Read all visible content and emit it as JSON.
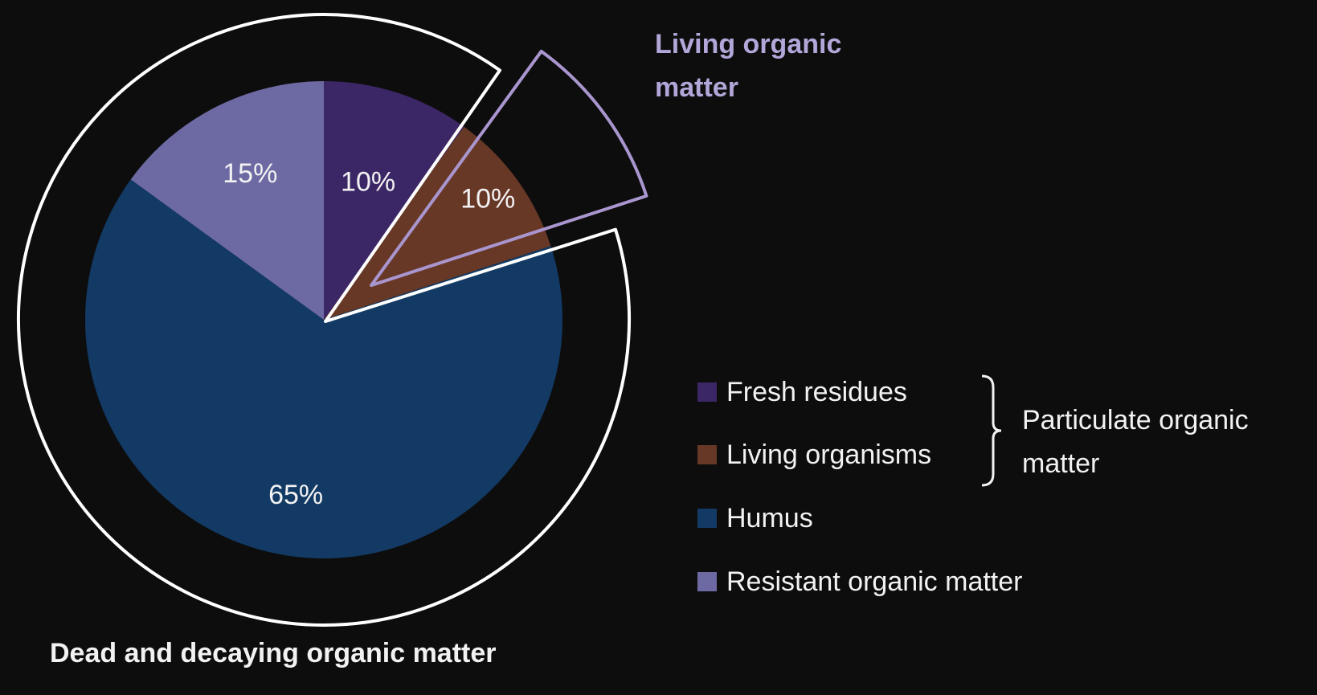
{
  "chart_data": {
    "type": "pie",
    "categories": [
      "Fresh residues",
      "Living organisms",
      "Humus",
      "Resistant organic matter"
    ],
    "values": [
      10,
      10,
      65,
      15
    ],
    "data_labels": [
      "10%",
      "10%",
      "65%",
      "15%"
    ],
    "colors": [
      "#3c2766",
      "#673826",
      "#123a64",
      "#6d6aa3"
    ],
    "start_angle_deg": 0,
    "direction": "clockwise",
    "annotations": {
      "living": {
        "title": "Living organic matter",
        "slices": [
          1
        ],
        "outline_color": "#a996cf"
      },
      "dead": {
        "title": "Dead and decaying organic matter",
        "slices": [
          0,
          2,
          3
        ],
        "outline_color": "#ffffff"
      }
    },
    "legend": {
      "placement": "right",
      "entries": [
        "Fresh residues",
        "Living organisms",
        "Humus",
        "Resistant organic matter"
      ],
      "group": {
        "label": "Particulate organic matter",
        "entries": [
          0,
          1
        ]
      }
    }
  }
}
